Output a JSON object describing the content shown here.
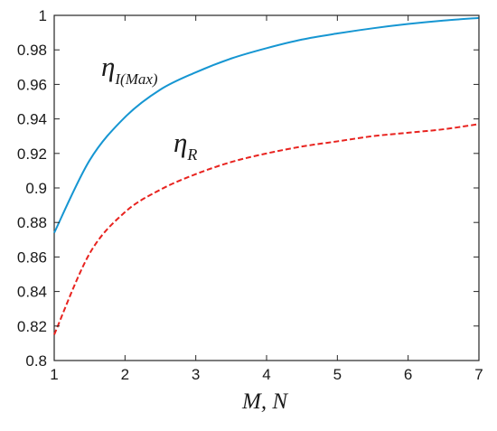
{
  "chart_data": {
    "type": "line",
    "title": "",
    "xlabel": "M, N",
    "ylabel": "",
    "xlim": [
      1,
      7
    ],
    "ylim": [
      0.8,
      1.0
    ],
    "x_ticks": [
      "1",
      "2",
      "3",
      "4",
      "5",
      "6",
      "7"
    ],
    "y_ticks": [
      "0.8",
      "0.82",
      "0.84",
      "0.86",
      "0.88",
      "0.9",
      "0.92",
      "0.94",
      "0.96",
      "0.98",
      "1"
    ],
    "grid": false,
    "legend": "none",
    "x": [
      1,
      1.5,
      2,
      2.5,
      3,
      3.5,
      4,
      4.5,
      5,
      5.5,
      6,
      6.5,
      7
    ],
    "series": [
      {
        "name_main": "η",
        "name_sub": "I(Max)",
        "color": "#1696d2",
        "style": "solid",
        "values": [
          0.874,
          0.916,
          0.941,
          0.957,
          0.967,
          0.975,
          0.981,
          0.986,
          0.9895,
          0.9925,
          0.995,
          0.997,
          0.9985
        ]
      },
      {
        "name_main": "η",
        "name_sub": "R",
        "color": "#e8231f",
        "style": "dashed",
        "values": [
          0.815,
          0.862,
          0.886,
          0.899,
          0.908,
          0.915,
          0.92,
          0.924,
          0.927,
          0.93,
          0.932,
          0.934,
          0.937
        ]
      }
    ]
  }
}
